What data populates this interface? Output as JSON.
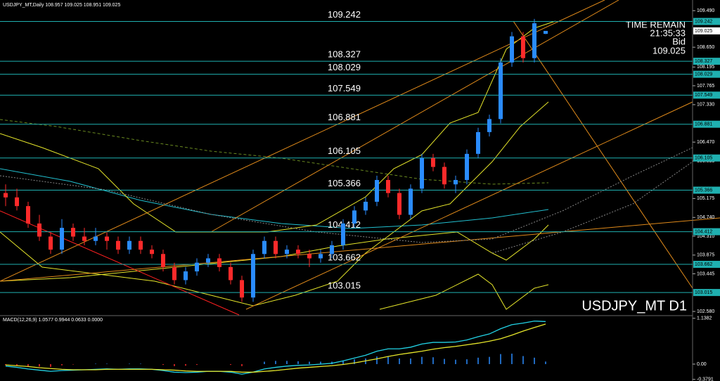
{
  "chart_data": {
    "type": "candlestick",
    "header": "USDJPY_MT,Daily  108.957 109.025 108.951 109.025",
    "symbol_label": "USDJPY_MT D1",
    "time_remain_label": "TIME REMAIN",
    "time_remain": "21:35:33",
    "bid_label": "Bid",
    "bid": "109.025",
    "up_color": "#2a8cff",
    "down_color": "#ff2a2a",
    "level_color": "#1fb0b0",
    "ylim": [
      102.5,
      109.67
    ],
    "yticks": [
      {
        "value": 109.49,
        "label": "109.490"
      },
      {
        "value": 108.65,
        "label": "108.650"
      },
      108.195,
      107.765,
      {
        "value": 107.33,
        "label": "107.330"
      },
      {
        "value": 106.47,
        "label": "106.470"
      },
      106.035,
      105.175,
      {
        "value": 104.74,
        "label": "104.740"
      },
      {
        "value": 104.31,
        "label": "104.310"
      },
      103.875,
      103.445,
      {
        "value": 102.58,
        "label": "102.580"
      }
    ],
    "levels": [
      109.242,
      108.327,
      108.029,
      107.549,
      106.881,
      106.105,
      105.366,
      104.412,
      103.662,
      103.015
    ],
    "ohlc": [
      [
        105.3,
        105.5,
        105.0,
        105.2
      ],
      [
        105.2,
        105.4,
        104.9,
        105.0
      ],
      [
        105.0,
        105.1,
        104.5,
        104.6
      ],
      [
        104.6,
        104.8,
        104.2,
        104.3
      ],
      [
        104.3,
        104.4,
        103.9,
        104.0
      ],
      [
        104.0,
        104.7,
        103.9,
        104.5
      ],
      [
        104.5,
        104.6,
        104.2,
        104.3
      ],
      [
        104.3,
        104.5,
        104.1,
        104.2
      ],
      [
        104.2,
        104.5,
        104.1,
        104.3
      ],
      [
        104.3,
        104.4,
        104.0,
        104.2
      ],
      [
        104.2,
        104.3,
        103.9,
        104.0
      ],
      [
        104.0,
        104.3,
        103.9,
        104.2
      ],
      [
        104.2,
        104.3,
        103.9,
        104.0
      ],
      [
        104.0,
        104.1,
        103.8,
        103.9
      ],
      [
        103.9,
        104.0,
        103.5,
        103.6
      ],
      [
        103.6,
        103.7,
        103.2,
        103.3
      ],
      [
        103.3,
        103.6,
        103.2,
        103.5
      ],
      [
        103.5,
        103.8,
        103.4,
        103.7
      ],
      [
        103.7,
        103.9,
        103.6,
        103.8
      ],
      [
        103.8,
        103.9,
        103.5,
        103.6
      ],
      [
        103.6,
        103.7,
        103.2,
        103.3
      ],
      [
        103.3,
        103.4,
        102.8,
        102.9
      ],
      [
        102.9,
        104.0,
        102.8,
        103.9
      ],
      [
        103.9,
        104.3,
        103.8,
        104.2
      ],
      [
        104.2,
        104.3,
        103.8,
        103.9
      ],
      [
        103.9,
        104.1,
        103.8,
        104.0
      ],
      [
        104.0,
        104.1,
        103.8,
        103.9
      ],
      [
        103.9,
        104.0,
        103.6,
        103.8
      ],
      [
        103.8,
        104.0,
        103.7,
        103.9
      ],
      [
        103.9,
        104.2,
        103.8,
        104.1
      ],
      [
        104.1,
        104.7,
        104.0,
        104.6
      ],
      [
        104.6,
        105.0,
        104.5,
        104.9
      ],
      [
        104.9,
        105.2,
        104.8,
        105.1
      ],
      [
        105.1,
        105.7,
        105.0,
        105.6
      ],
      [
        105.6,
        105.7,
        105.2,
        105.3
      ],
      [
        105.3,
        105.4,
        104.7,
        104.8
      ],
      [
        104.8,
        105.5,
        104.7,
        105.4
      ],
      [
        105.4,
        106.2,
        105.3,
        106.1
      ],
      [
        106.1,
        106.2,
        105.8,
        105.9
      ],
      [
        105.9,
        106.0,
        105.4,
        105.5
      ],
      [
        105.5,
        105.7,
        105.3,
        105.6
      ],
      [
        105.6,
        106.3,
        105.5,
        106.2
      ],
      [
        106.2,
        106.8,
        106.1,
        106.7
      ],
      [
        106.7,
        107.1,
        106.6,
        107.0
      ],
      [
        107.0,
        108.4,
        106.9,
        108.3
      ],
      [
        108.3,
        109.0,
        108.2,
        108.9
      ],
      [
        108.9,
        109.0,
        108.3,
        108.4
      ],
      [
        108.4,
        109.3,
        108.3,
        109.2
      ],
      [
        108.957,
        109.025,
        108.951,
        109.025
      ]
    ],
    "macd": {
      "label": "MACD(12,26,9) 1.0577 0.9944 0.0633 0.0000",
      "ylim": [
        -0.35,
        1.17
      ],
      "yticks": [
        1.1382,
        {
          "value": 0,
          "label": "0.00"
        },
        -0.3791
      ],
      "main_color": "#22d3e6",
      "signal_color": "#e6e62a",
      "main": [
        -0.05,
        -0.08,
        -0.12,
        -0.15,
        -0.18,
        -0.16,
        -0.15,
        -0.14,
        -0.13,
        -0.12,
        -0.13,
        -0.12,
        -0.12,
        -0.13,
        -0.16,
        -0.2,
        -0.21,
        -0.2,
        -0.18,
        -0.18,
        -0.2,
        -0.25,
        -0.2,
        -0.12,
        -0.08,
        -0.05,
        -0.03,
        -0.02,
        0.0,
        0.02,
        0.08,
        0.15,
        0.22,
        0.32,
        0.38,
        0.38,
        0.42,
        0.5,
        0.54,
        0.54,
        0.55,
        0.6,
        0.68,
        0.75,
        0.88,
        0.98,
        1.02,
        1.07,
        1.0577
      ],
      "signal": [
        -0.02,
        -0.04,
        -0.06,
        -0.09,
        -0.11,
        -0.13,
        -0.14,
        -0.14,
        -0.14,
        -0.13,
        -0.13,
        -0.13,
        -0.13,
        -0.13,
        -0.14,
        -0.15,
        -0.17,
        -0.18,
        -0.18,
        -0.18,
        -0.18,
        -0.2,
        -0.2,
        -0.18,
        -0.16,
        -0.13,
        -0.1,
        -0.08,
        -0.06,
        -0.04,
        -0.01,
        0.03,
        0.08,
        0.13,
        0.19,
        0.24,
        0.28,
        0.32,
        0.37,
        0.41,
        0.44,
        0.48,
        0.52,
        0.57,
        0.63,
        0.72,
        0.82,
        0.91,
        0.9944
      ],
      "hist": [
        -0.03,
        -0.04,
        -0.06,
        -0.06,
        -0.07,
        -0.03,
        -0.01,
        0,
        0.01,
        0.01,
        0,
        0.01,
        0.01,
        0,
        -0.02,
        -0.05,
        -0.04,
        -0.02,
        0,
        0,
        -0.02,
        -0.05,
        0,
        0.06,
        0.08,
        0.08,
        0.07,
        0.06,
        0.06,
        0.06,
        0.09,
        0.12,
        0.14,
        0.19,
        0.19,
        0.14,
        0.14,
        0.18,
        0.17,
        0.13,
        0.11,
        0.12,
        0.16,
        0.18,
        0.25,
        0.26,
        0.2,
        0.16,
        0.0633
      ]
    }
  }
}
